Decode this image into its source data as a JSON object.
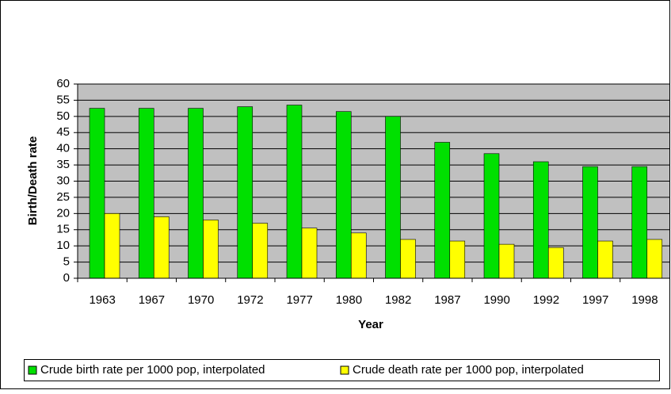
{
  "chart_data": {
    "type": "bar",
    "x_label": "Year",
    "y_label": "Birth/Death rate",
    "categories": [
      "1963",
      "1967",
      "1970",
      "1972",
      "1977",
      "1980",
      "1982",
      "1987",
      "1990",
      "1992",
      "1997",
      "1998"
    ],
    "series": [
      {
        "name": "Crude birth rate per 1000 pop, interpolated",
        "color": "#00e000",
        "values": [
          52.5,
          52.5,
          52.5,
          53,
          53.5,
          51.5,
          50,
          42,
          38.5,
          36,
          34.5,
          34.5
        ]
      },
      {
        "name": "Crude death rate per 1000 pop, interpolated",
        "color": "#ffff00",
        "values": [
          20,
          19,
          18,
          17,
          15.5,
          14,
          12,
          11.5,
          10.5,
          9.5,
          11.5,
          12
        ]
      }
    ],
    "ylim": [
      0,
      60
    ],
    "yticks": [
      0,
      5,
      10,
      15,
      20,
      25,
      30,
      35,
      40,
      45,
      50,
      55,
      60
    ],
    "grid": true,
    "legend": "bottom",
    "plot_background": "#c0c0c0"
  }
}
